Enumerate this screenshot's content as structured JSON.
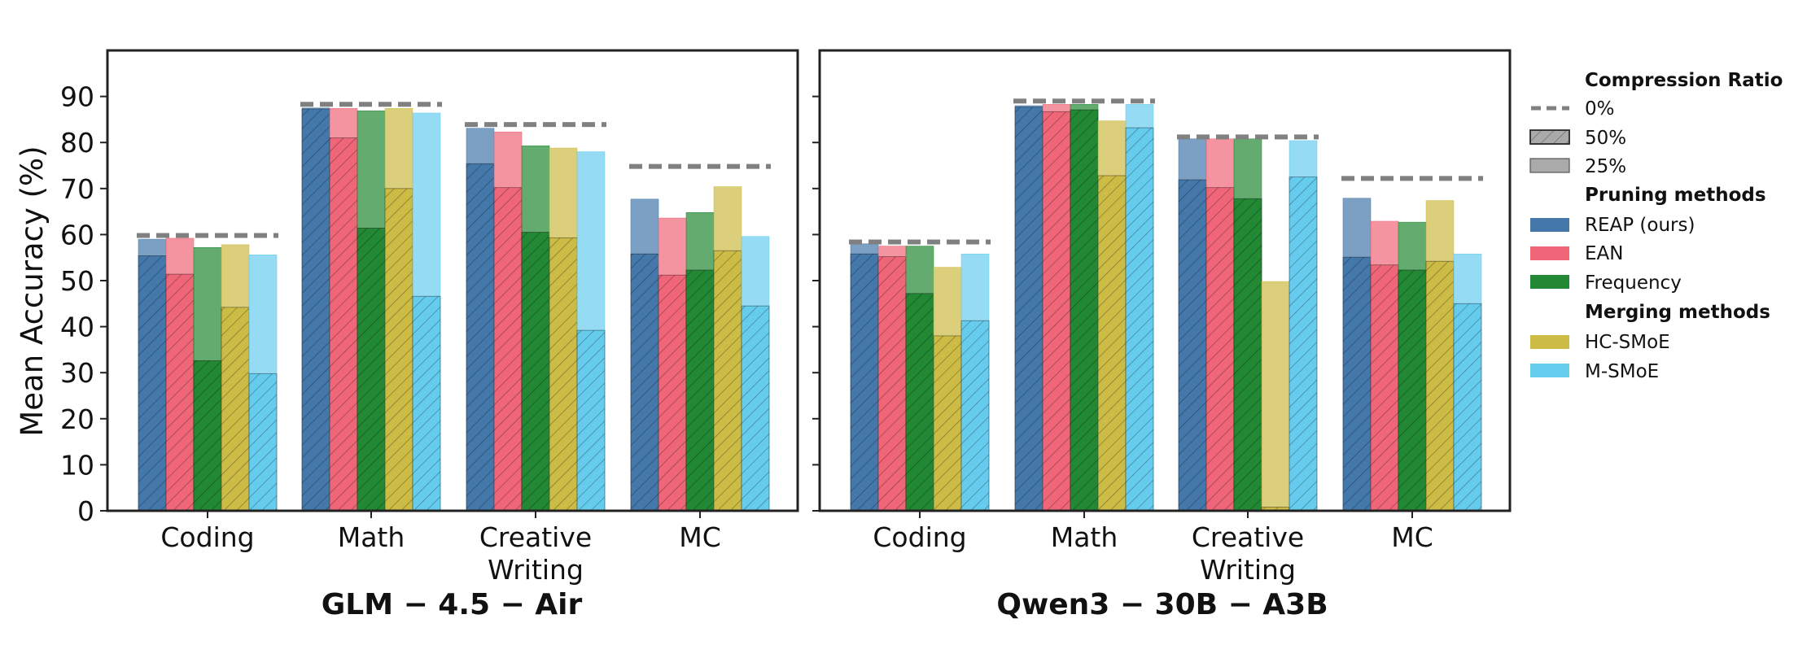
{
  "chart_data": {
    "type": "bar",
    "ylabel": "Mean Accuracy (%)",
    "ylim": [
      0,
      100
    ],
    "yticks": [
      0,
      10,
      20,
      30,
      40,
      50,
      60,
      70,
      80,
      90
    ],
    "legend_position": "right",
    "legend": {
      "compression_title": "Compression Ratio",
      "compression_items": [
        "0%",
        "50%",
        "25%"
      ],
      "pruning_title": "Pruning methods",
      "merging_title": "Merging methods"
    },
    "methods": [
      {
        "name": "REAP (ours)",
        "color": "#4477AA",
        "group": "pruning"
      },
      {
        "name": "EAN",
        "color": "#EE6677",
        "group": "pruning"
      },
      {
        "name": "Frequency",
        "color": "#228833",
        "group": "pruning"
      },
      {
        "name": "HC-SMoE",
        "color": "#CCBB44",
        "group": "merging"
      },
      {
        "name": "M-SMoE",
        "color": "#66CCEE",
        "group": "merging"
      }
    ],
    "panels": [
      {
        "title": "GLM − 4.5 − Air",
        "categories": [
          {
            "label": [
              "Coding"
            ],
            "baseline": 59.8,
            "ratio_25": [
              59,
              59.2,
              57.2,
              57.8,
              55.6
            ],
            "ratio_50": [
              55.4,
              51.4,
              32.6,
              44.2,
              29.8
            ]
          },
          {
            "label": [
              "Math"
            ],
            "baseline": 88.3,
            "ratio_25": [
              87.5,
              87.4,
              86.9,
              87.4,
              86.4
            ],
            "ratio_50": [
              87.3,
              81,
              61.4,
              70,
              46.6
            ]
          },
          {
            "label": [
              "Creative",
              "Writing"
            ],
            "baseline": 83.9,
            "ratio_25": [
              83.1,
              82.3,
              79.3,
              78.8,
              78
            ],
            "ratio_50": [
              75.4,
              70.2,
              60.5,
              59.3,
              39.2
            ]
          },
          {
            "label": [
              "MC"
            ],
            "baseline": 74.8,
            "ratio_25": [
              67.7,
              63.6,
              64.8,
              70.4,
              59.6
            ],
            "ratio_50": [
              55.8,
              51.2,
              52.3,
              56.5,
              44.5
            ]
          }
        ]
      },
      {
        "title": "Qwen3 − 30B − A3B",
        "categories": [
          {
            "label": [
              "Coding"
            ],
            "baseline": 58.4,
            "ratio_25": [
              58,
              57.5,
              57.5,
              52.9,
              55.8
            ],
            "ratio_50": [
              55.8,
              55.2,
              47.2,
              38,
              41.3
            ]
          },
          {
            "label": [
              "Math"
            ],
            "baseline": 89,
            "ratio_25": [
              88,
              88.3,
              88.3,
              84.7,
              88.3
            ],
            "ratio_50": [
              87.7,
              86.7,
              87.1,
              72.8,
              83.2
            ]
          },
          {
            "label": [
              "Creative",
              "Writing"
            ],
            "baseline": 81.2,
            "ratio_25": [
              80.8,
              80.8,
              80.8,
              49.8,
              80.4
            ],
            "ratio_50": [
              71.9,
              70.2,
              67.8,
              0.8,
              72.5
            ]
          },
          {
            "label": [
              "MC"
            ],
            "baseline": 72.2,
            "ratio_25": [
              67.9,
              62.9,
              62.7,
              67.4,
              55.8
            ],
            "ratio_50": [
              55.1,
              53.4,
              52.3,
              54.2,
              45
            ]
          }
        ]
      }
    ]
  }
}
